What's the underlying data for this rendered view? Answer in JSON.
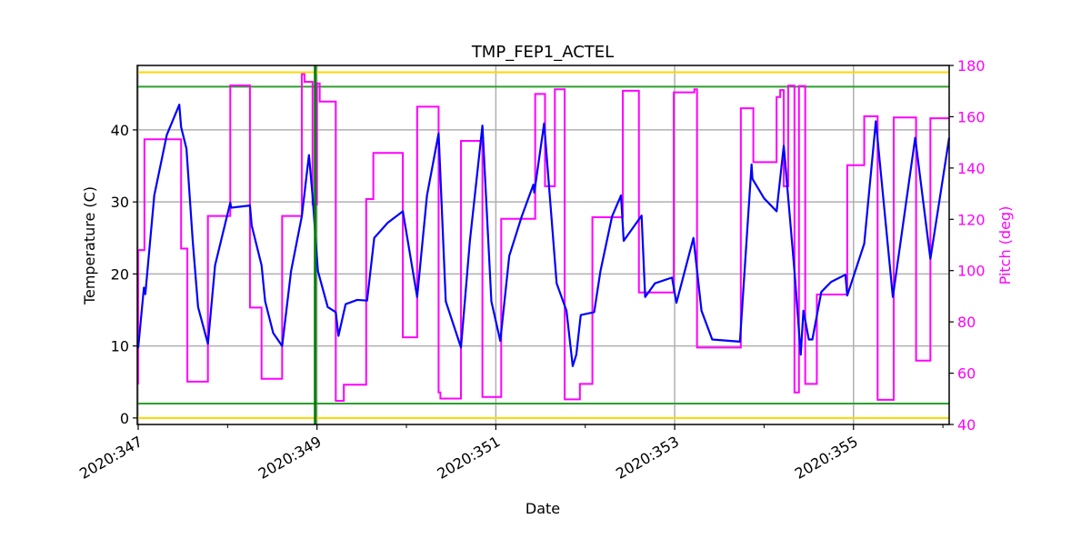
{
  "chart_data": {
    "type": "line",
    "title": "TMP_FEP1_ACTEL",
    "xlabel": "Date",
    "ylabel": "Temperature (C)",
    "ylabel_right": "Pitch (deg)",
    "xlim": [
      346.99,
      356.07
    ],
    "ylim": [
      -0.9,
      48.95
    ],
    "ylim_right": [
      40,
      180
    ],
    "x_ticks": [
      347,
      349,
      351,
      353,
      355
    ],
    "x_tick_labels": [
      "2020:347",
      "2020:349",
      "2020:351",
      "2020:353",
      "2020:355"
    ],
    "x_minor_ticks": [
      348,
      350,
      352,
      354,
      356
    ],
    "y_ticks": [
      0,
      10,
      20,
      30,
      40
    ],
    "y_tick_labels": [
      "0",
      "10",
      "20",
      "30",
      "40"
    ],
    "y_right_ticks": [
      40,
      60,
      80,
      100,
      120,
      140,
      160,
      180
    ],
    "y_right_tick_labels": [
      "40",
      "60",
      "80",
      "100",
      "120",
      "140",
      "160",
      "180"
    ],
    "grid": true,
    "colors": {
      "temperature": "#0000ff",
      "pitch": "#ff00ff",
      "planning_limit": "#2ca02c",
      "caution_limit": "#ffd700",
      "right_axis": "#ff00ff",
      "marker_line": "#008000",
      "grid": "#b0b0b0"
    },
    "hlines": [
      {
        "kind": "caution-high",
        "value": 48,
        "color": "#ffd700"
      },
      {
        "kind": "planning-high",
        "value": 46,
        "color": "#2ca02c"
      },
      {
        "kind": "planning-low",
        "value": 2,
        "color": "#2ca02c"
      },
      {
        "kind": "caution-low",
        "value": 0,
        "color": "#ffd700"
      }
    ],
    "vline": {
      "value": 348.98,
      "color": "#008000"
    },
    "series": [
      {
        "axis": "left",
        "x": [
          347.0,
          347.064,
          347.08,
          347.18,
          347.32,
          347.46,
          347.48,
          347.54,
          347.61,
          347.67,
          347.78,
          347.86,
          348.03,
          348.04,
          348.25,
          348.27,
          348.38,
          348.42,
          348.51,
          348.61,
          348.71,
          348.83,
          348.91,
          348.95,
          349.01,
          349.12,
          349.21,
          349.24,
          349.32,
          349.45,
          349.56,
          349.64,
          349.79,
          349.96,
          350.12,
          350.23,
          350.36,
          350.44,
          350.61,
          350.71,
          350.85,
          350.95,
          351.05,
          351.15,
          351.29,
          351.42,
          351.43,
          351.54,
          351.68,
          351.79,
          351.86,
          351.9,
          351.95,
          352.1,
          352.17,
          352.3,
          352.4,
          352.43,
          352.63,
          352.67,
          352.78,
          352.97,
          353.02,
          353.21,
          353.3,
          353.42,
          353.73,
          353.86,
          353.87,
          354.0,
          354.14,
          354.22,
          354.34,
          354.41,
          354.44,
          354.5,
          354.54,
          354.64,
          354.75,
          354.91,
          354.93,
          355.12,
          355.25,
          355.44,
          355.69,
          355.86,
          356.07
        ],
        "y": [
          9.7,
          18.1,
          17.2,
          30.9,
          39.3,
          43.5,
          40.4,
          37.4,
          24.6,
          15.4,
          10.3,
          21.2,
          29.9,
          29.2,
          29.5,
          26.7,
          21.2,
          16.2,
          11.8,
          10.0,
          20.4,
          28.0,
          36.5,
          30.9,
          20.4,
          15.4,
          14.7,
          11.4,
          15.8,
          16.4,
          16.3,
          25.0,
          27.1,
          28.7,
          16.8,
          30.9,
          39.5,
          16.2,
          9.8,
          24.6,
          40.6,
          16.2,
          10.7,
          22.5,
          28.0,
          32.4,
          31.3,
          40.9,
          18.7,
          14.9,
          7.2,
          8.8,
          14.3,
          14.7,
          20.4,
          28.0,
          30.9,
          24.6,
          28.1,
          16.8,
          18.7,
          19.5,
          16.0,
          25.0,
          14.9,
          10.9,
          10.6,
          35.2,
          33.2,
          30.5,
          28.7,
          37.8,
          20.4,
          8.8,
          14.9,
          10.9,
          10.9,
          17.5,
          18.9,
          19.9,
          17.0,
          24.2,
          41.2,
          16.8,
          38.9,
          22.1,
          38.9
        ]
      },
      {
        "axis": "right",
        "step": "post",
        "x": [
          346.99,
          347.0,
          347.07,
          347.48,
          347.55,
          347.78,
          348.03,
          348.25,
          348.38,
          348.61,
          348.83,
          348.86,
          348.95,
          349.0,
          349.03,
          349.21,
          349.3,
          349.55,
          349.63,
          349.96,
          350.12,
          350.36,
          350.38,
          350.61,
          350.85,
          351.06,
          351.44,
          351.55,
          351.66,
          351.77,
          351.94,
          352.08,
          352.42,
          352.6,
          352.99,
          353.22,
          353.25,
          353.74,
          353.88,
          354.14,
          354.18,
          354.22,
          354.27,
          354.34,
          354.39,
          354.46,
          354.59,
          354.93,
          355.12,
          355.27,
          355.45,
          355.7,
          355.86,
          356.07
        ],
        "y": [
          56,
          108,
          151.2,
          108.6,
          56.7,
          121.3,
          172.2,
          85.6,
          57.8,
          121.3,
          176.6,
          173.6,
          125.8,
          173,
          165.9,
          49.2,
          55.5,
          127.9,
          145.9,
          74,
          163.9,
          52.5,
          50.1,
          150.6,
          50.7,
          120.2,
          168.9,
          132.9,
          170.7,
          49.8,
          55.8,
          120.8,
          170.1,
          91.5,
          169.5,
          170.7,
          70,
          163.3,
          142.3,
          167.7,
          170.4,
          132.9,
          172.1,
          52.5,
          172,
          55.8,
          90.7,
          141.1,
          160.2,
          49.6,
          159.7,
          64.9,
          159.4,
          159.4
        ]
      }
    ]
  }
}
